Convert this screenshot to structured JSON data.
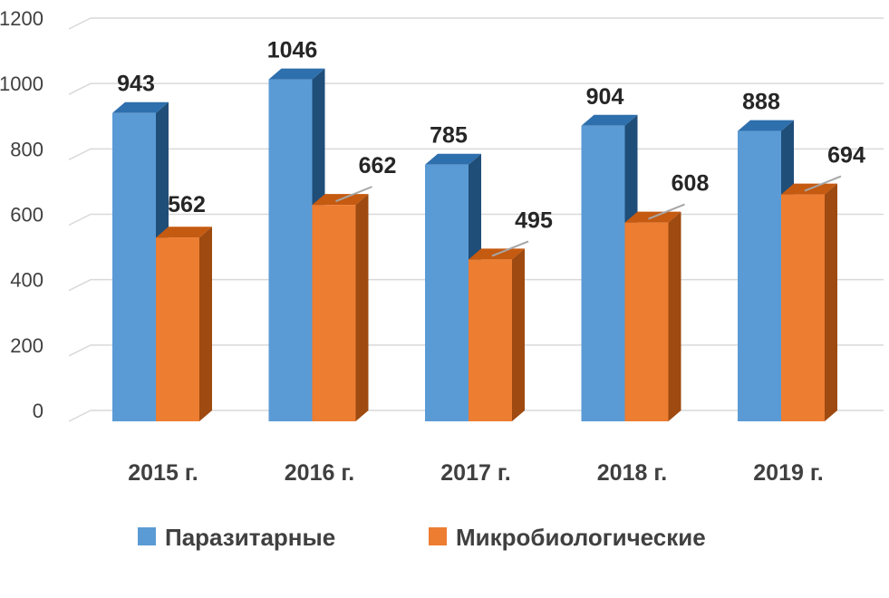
{
  "chart_data": {
    "type": "bar",
    "title": "",
    "xlabel": "",
    "ylabel": "",
    "ylim": [
      0,
      1200
    ],
    "yticks": [
      "0",
      "200",
      "400",
      "600",
      "800",
      "1000",
      "1200"
    ],
    "categories": [
      "2015 г.",
      "2016 г.",
      "2017 г.",
      "2018 г.",
      "2019 г."
    ],
    "series": [
      {
        "name": "Паразитарные",
        "values": [
          943,
          1046,
          785,
          904,
          888
        ],
        "color": "#5b9bd5",
        "side": "#1f4e79",
        "top": "#2e6fad"
      },
      {
        "name": "Микробиологические",
        "values": [
          562,
          662,
          495,
          608,
          694
        ],
        "color": "#ed7d31",
        "side": "#9e4a10",
        "top": "#c55a11"
      }
    ],
    "data_labels": true,
    "grid": true,
    "legend": "bottom"
  }
}
